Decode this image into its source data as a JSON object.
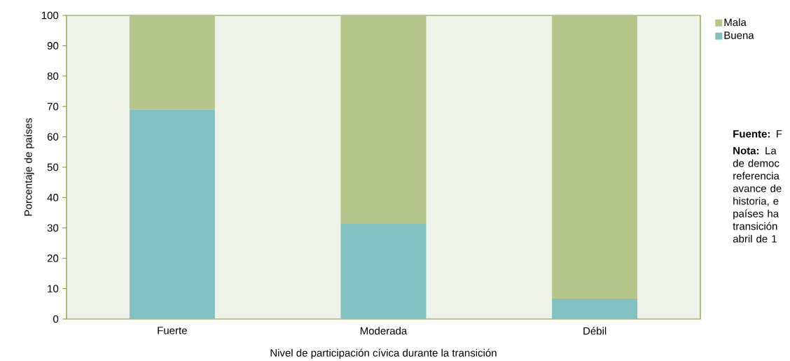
{
  "chart_data": {
    "type": "bar",
    "stacked": true,
    "xlabel": "Nivel de participación cívica durante la transición",
    "ylabel": "Porcentaje de países",
    "categories": [
      "Fuerte",
      "Moderada",
      "Débil"
    ],
    "series": [
      {
        "name": "Buena",
        "color": "#82c1c1",
        "values": [
          69,
          31.5,
          6.7
        ]
      },
      {
        "name": "Mala",
        "color": "#b6c58a",
        "values": [
          31,
          68.5,
          93.3
        ]
      }
    ],
    "ylim": [
      0,
      100
    ],
    "yticks": [
      0,
      10,
      20,
      30,
      40,
      50,
      60,
      70,
      80,
      90,
      100
    ],
    "grid": false,
    "legend": "top right",
    "annotations": [
      "**Fuente:** F",
      "**Nota:** La de democ referencia avance de historia, e países ha transición abril de 1"
    ]
  }
}
